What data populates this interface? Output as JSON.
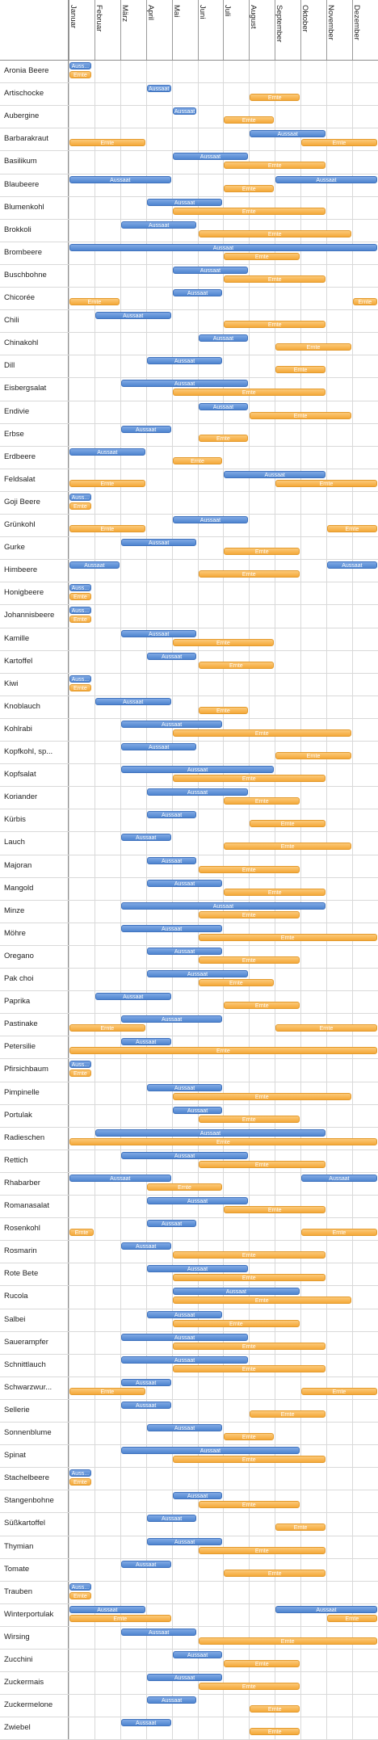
{
  "months": [
    "Januar",
    "Februar",
    "März",
    "April",
    "Mai",
    "Juni",
    "Juli",
    "August",
    "September",
    "Oktober",
    "November",
    "Dezember"
  ],
  "labels": {
    "sow": "Aussaat",
    "sow_short": "Auss...",
    "harvest": "Ernte"
  },
  "colors": {
    "sow": "#4f85d0",
    "harvest": "#f4a93a",
    "grid": "#d9d9d9"
  },
  "plants": [
    {
      "name": "Aronia Beere",
      "sow": [
        [
          0,
          0.9
        ]
      ],
      "harvest": [
        [
          0,
          0.9
        ]
      ],
      "sow_label": "Auss...",
      "harvest_label": "Ernte"
    },
    {
      "name": "Artischocke",
      "sow": [
        [
          3,
          4
        ]
      ],
      "harvest": [
        [
          7,
          9
        ]
      ]
    },
    {
      "name": "Aubergine",
      "sow": [
        [
          4,
          5
        ]
      ],
      "harvest": [
        [
          6,
          8
        ]
      ]
    },
    {
      "name": "Barbarakraut",
      "sow": [
        [
          7,
          10
        ]
      ],
      "harvest": [
        [
          0,
          3
        ],
        [
          9,
          12
        ]
      ]
    },
    {
      "name": "Basilikum",
      "sow": [
        [
          4,
          7
        ]
      ],
      "harvest": [
        [
          6,
          10
        ]
      ]
    },
    {
      "name": "Blaubeere",
      "sow": [
        [
          0,
          4
        ],
        [
          8,
          12
        ]
      ],
      "harvest": [
        [
          6,
          8
        ]
      ]
    },
    {
      "name": "Blumenkohl",
      "sow": [
        [
          3,
          6
        ]
      ],
      "harvest": [
        [
          4,
          10
        ]
      ]
    },
    {
      "name": "Brokkoli",
      "sow": [
        [
          2,
          5
        ]
      ],
      "harvest": [
        [
          5,
          11
        ]
      ]
    },
    {
      "name": "Brombeere",
      "sow": [
        [
          0,
          12
        ]
      ],
      "harvest": [
        [
          6,
          9
        ]
      ]
    },
    {
      "name": "Buschbohne",
      "sow": [
        [
          4,
          7
        ]
      ],
      "harvest": [
        [
          6,
          10
        ]
      ]
    },
    {
      "name": "Chicorée",
      "sow": [
        [
          4,
          6
        ]
      ],
      "harvest": [
        [
          0,
          2
        ],
        [
          11,
          12
        ]
      ]
    },
    {
      "name": "Chili",
      "sow": [
        [
          1,
          4
        ]
      ],
      "harvest": [
        [
          6,
          10
        ]
      ]
    },
    {
      "name": "Chinakohl",
      "sow": [
        [
          5,
          7
        ]
      ],
      "harvest": [
        [
          8,
          11
        ]
      ]
    },
    {
      "name": "Dill",
      "sow": [
        [
          3,
          6
        ]
      ],
      "harvest": [
        [
          8,
          10
        ]
      ]
    },
    {
      "name": "Eisbergsalat",
      "sow": [
        [
          2,
          7
        ]
      ],
      "harvest": [
        [
          4,
          10
        ]
      ]
    },
    {
      "name": "Endivie",
      "sow": [
        [
          5,
          7
        ]
      ],
      "harvest": [
        [
          7,
          11
        ]
      ]
    },
    {
      "name": "Erbse",
      "sow": [
        [
          2,
          4
        ]
      ],
      "harvest": [
        [
          5,
          7
        ]
      ]
    },
    {
      "name": "Erdbeere",
      "sow": [
        [
          0,
          3
        ]
      ],
      "harvest": [
        [
          4,
          6
        ]
      ]
    },
    {
      "name": "Feldsalat",
      "sow": [
        [
          6,
          10
        ]
      ],
      "harvest": [
        [
          0,
          3
        ],
        [
          8,
          12
        ]
      ]
    },
    {
      "name": "Goji Beere",
      "sow": [
        [
          0,
          0.9
        ]
      ],
      "harvest": [
        [
          0,
          0.9
        ]
      ],
      "sow_label": "Auss...",
      "harvest_label": "Ernte"
    },
    {
      "name": "Grünkohl",
      "sow": [
        [
          4,
          7
        ]
      ],
      "harvest": [
        [
          0,
          3
        ],
        [
          10,
          12
        ]
      ]
    },
    {
      "name": "Gurke",
      "sow": [
        [
          2,
          5
        ]
      ],
      "harvest": [
        [
          6,
          9
        ]
      ]
    },
    {
      "name": "Himbeere",
      "sow": [
        [
          0,
          2
        ],
        [
          10,
          12
        ]
      ],
      "harvest": [
        [
          5,
          9
        ]
      ]
    },
    {
      "name": "Honigbeere",
      "sow": [
        [
          0,
          0.9
        ]
      ],
      "harvest": [
        [
          0,
          0.9
        ]
      ],
      "sow_label": "Auss...",
      "harvest_label": "Ernte"
    },
    {
      "name": "Johannisbeere",
      "sow": [
        [
          0,
          0.9
        ]
      ],
      "harvest": [
        [
          0,
          0.9
        ]
      ],
      "sow_label": "Auss...",
      "harvest_label": "Ernte"
    },
    {
      "name": "Kamille",
      "sow": [
        [
          2,
          5
        ]
      ],
      "harvest": [
        [
          4,
          8
        ]
      ]
    },
    {
      "name": "Kartoffel",
      "sow": [
        [
          3,
          5
        ]
      ],
      "harvest": [
        [
          5,
          8
        ]
      ]
    },
    {
      "name": "Kiwi",
      "sow": [
        [
          0,
          0.9
        ]
      ],
      "harvest": [
        [
          0,
          0.9
        ]
      ],
      "sow_label": "Auss...",
      "harvest_label": "Ernte"
    },
    {
      "name": "Knoblauch",
      "sow": [
        [
          1,
          4
        ]
      ],
      "harvest": [
        [
          5,
          7
        ]
      ]
    },
    {
      "name": "Kohlrabi",
      "sow": [
        [
          2,
          6
        ]
      ],
      "harvest": [
        [
          4,
          11
        ]
      ]
    },
    {
      "name": "Kopfkohl, sp...",
      "sow": [
        [
          2,
          5
        ]
      ],
      "harvest": [
        [
          8,
          11
        ]
      ]
    },
    {
      "name": "Kopfsalat",
      "sow": [
        [
          2,
          8
        ]
      ],
      "harvest": [
        [
          4,
          10
        ]
      ]
    },
    {
      "name": "Koriander",
      "sow": [
        [
          3,
          7
        ]
      ],
      "harvest": [
        [
          6,
          9
        ]
      ]
    },
    {
      "name": "Kürbis",
      "sow": [
        [
          3,
          5
        ]
      ],
      "harvest": [
        [
          7,
          10
        ]
      ]
    },
    {
      "name": "Lauch",
      "sow": [
        [
          2,
          4
        ]
      ],
      "harvest": [
        [
          6,
          11
        ]
      ]
    },
    {
      "name": "Majoran",
      "sow": [
        [
          3,
          5
        ]
      ],
      "harvest": [
        [
          5,
          9
        ]
      ]
    },
    {
      "name": "Mangold",
      "sow": [
        [
          3,
          6
        ]
      ],
      "harvest": [
        [
          6,
          10
        ]
      ]
    },
    {
      "name": "Minze",
      "sow": [
        [
          2,
          10
        ]
      ],
      "harvest": [
        [
          5,
          9
        ]
      ]
    },
    {
      "name": "Möhre",
      "sow": [
        [
          2,
          6
        ]
      ],
      "harvest": [
        [
          5,
          12
        ]
      ]
    },
    {
      "name": "Oregano",
      "sow": [
        [
          3,
          6
        ]
      ],
      "harvest": [
        [
          5,
          9
        ]
      ]
    },
    {
      "name": "Pak choi",
      "sow": [
        [
          3,
          7
        ]
      ],
      "harvest": [
        [
          5,
          8
        ]
      ]
    },
    {
      "name": "Paprika",
      "sow": [
        [
          1,
          4
        ]
      ],
      "harvest": [
        [
          6,
          9
        ]
      ]
    },
    {
      "name": "Pastinake",
      "sow": [
        [
          2,
          6
        ]
      ],
      "harvest": [
        [
          0,
          3
        ],
        [
          8,
          12
        ]
      ]
    },
    {
      "name": "Petersilie",
      "sow": [
        [
          2,
          4
        ]
      ],
      "harvest": [
        [
          0,
          12
        ]
      ]
    },
    {
      "name": "Pfirsichbaum",
      "sow": [
        [
          0,
          0.9
        ]
      ],
      "harvest": [
        [
          0,
          0.9
        ]
      ],
      "sow_label": "Auss...",
      "harvest_label": "Ernte"
    },
    {
      "name": "Pimpinelle",
      "sow": [
        [
          3,
          6
        ]
      ],
      "harvest": [
        [
          4,
          11
        ]
      ]
    },
    {
      "name": "Portulak",
      "sow": [
        [
          4,
          6
        ]
      ],
      "harvest": [
        [
          5,
          9
        ]
      ]
    },
    {
      "name": "Radieschen",
      "sow": [
        [
          1,
          10
        ]
      ],
      "harvest": [
        [
          0,
          12
        ]
      ]
    },
    {
      "name": "Rettich",
      "sow": [
        [
          2,
          7
        ]
      ],
      "harvest": [
        [
          5,
          10
        ]
      ]
    },
    {
      "name": "Rhabarber",
      "sow": [
        [
          0,
          4
        ],
        [
          9,
          12
        ]
      ],
      "harvest": [
        [
          3,
          6
        ]
      ]
    },
    {
      "name": "Romanasalat",
      "sow": [
        [
          3,
          7
        ]
      ],
      "harvest": [
        [
          6,
          10
        ]
      ]
    },
    {
      "name": "Rosenkohl",
      "sow": [
        [
          3,
          5
        ]
      ],
      "harvest": [
        [
          0,
          1
        ],
        [
          9,
          12
        ]
      ]
    },
    {
      "name": "Rosmarin",
      "sow": [
        [
          2,
          4
        ]
      ],
      "harvest": [
        [
          4,
          10
        ]
      ]
    },
    {
      "name": "Rote Bete",
      "sow": [
        [
          3,
          7
        ]
      ],
      "harvest": [
        [
          4,
          10
        ]
      ]
    },
    {
      "name": "Rucola",
      "sow": [
        [
          4,
          9
        ]
      ],
      "harvest": [
        [
          4,
          11
        ]
      ]
    },
    {
      "name": "Salbei",
      "sow": [
        [
          3,
          6
        ]
      ],
      "harvest": [
        [
          4,
          9
        ]
      ]
    },
    {
      "name": "Sauerampfer",
      "sow": [
        [
          2,
          7
        ]
      ],
      "harvest": [
        [
          4,
          10
        ]
      ]
    },
    {
      "name": "Schnittlauch",
      "sow": [
        [
          2,
          7
        ]
      ],
      "harvest": [
        [
          4,
          10
        ]
      ]
    },
    {
      "name": "Schwarzwur...",
      "sow": [
        [
          2,
          4
        ]
      ],
      "harvest": [
        [
          0,
          3
        ],
        [
          9,
          12
        ]
      ]
    },
    {
      "name": "Sellerie",
      "sow": [
        [
          2,
          4
        ]
      ],
      "harvest": [
        [
          7,
          10
        ]
      ]
    },
    {
      "name": "Sonnenblume",
      "sow": [
        [
          3,
          6
        ]
      ],
      "harvest": [
        [
          6,
          8
        ]
      ]
    },
    {
      "name": "Spinat",
      "sow": [
        [
          2,
          9
        ]
      ],
      "harvest": [
        [
          4,
          10
        ]
      ]
    },
    {
      "name": "Stachelbeere",
      "sow": [
        [
          0,
          0.9
        ]
      ],
      "harvest": [
        [
          0,
          0.9
        ]
      ],
      "sow_label": "Auss...",
      "harvest_label": "Ernte"
    },
    {
      "name": "Stangenbohne",
      "sow": [
        [
          4,
          6
        ]
      ],
      "harvest": [
        [
          5,
          9
        ]
      ]
    },
    {
      "name": "Süßkartoffel",
      "sow": [
        [
          3,
          5
        ]
      ],
      "harvest": [
        [
          8,
          10
        ]
      ]
    },
    {
      "name": "Thymian",
      "sow": [
        [
          3,
          6
        ]
      ],
      "harvest": [
        [
          5,
          10
        ]
      ]
    },
    {
      "name": "Tomate",
      "sow": [
        [
          2,
          4
        ]
      ],
      "harvest": [
        [
          6,
          10
        ]
      ]
    },
    {
      "name": "Trauben",
      "sow": [
        [
          0,
          0.9
        ]
      ],
      "harvest": [
        [
          0,
          0.9
        ]
      ],
      "sow_label": "Auss...",
      "harvest_label": "Ernte"
    },
    {
      "name": "Winterportulak",
      "sow": [
        [
          0,
          3
        ],
        [
          8,
          12
        ]
      ],
      "harvest": [
        [
          0,
          4
        ],
        [
          10,
          12
        ]
      ]
    },
    {
      "name": "Wirsing",
      "sow": [
        [
          2,
          5
        ]
      ],
      "harvest": [
        [
          5,
          12
        ]
      ]
    },
    {
      "name": "Zucchini",
      "sow": [
        [
          4,
          6
        ]
      ],
      "harvest": [
        [
          6,
          9
        ]
      ]
    },
    {
      "name": "Zuckermais",
      "sow": [
        [
          3,
          6
        ]
      ],
      "harvest": [
        [
          5,
          9
        ]
      ]
    },
    {
      "name": "Zuckermelone",
      "sow": [
        [
          3,
          5
        ]
      ],
      "harvest": [
        [
          7,
          9
        ]
      ]
    },
    {
      "name": "Zwiebel",
      "sow": [
        [
          2,
          4
        ]
      ],
      "harvest": [
        [
          7,
          9
        ]
      ]
    }
  ]
}
